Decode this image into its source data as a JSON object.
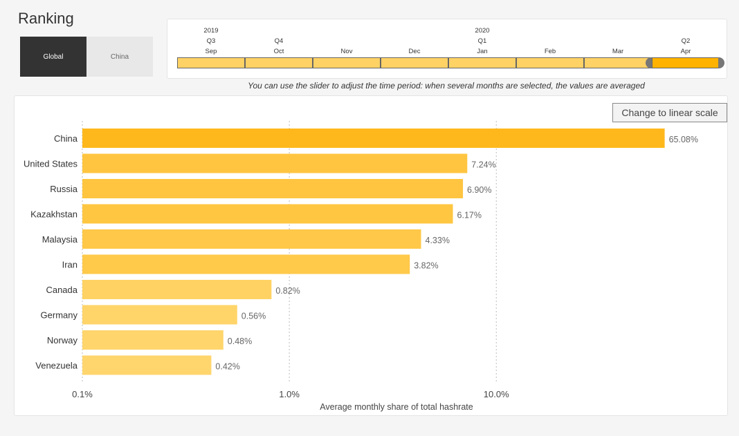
{
  "page": {
    "title": "Ranking"
  },
  "region_toggle": {
    "options": [
      {
        "label": "Global",
        "active": true
      },
      {
        "label": "China",
        "active": false
      }
    ]
  },
  "timeline": {
    "years": [
      {
        "label": "2019",
        "month_index": 0
      },
      {
        "label": "2020",
        "month_index": 4
      }
    ],
    "quarters": [
      {
        "label": "Q3",
        "month_index": 0
      },
      {
        "label": "Q4",
        "month_index": 1
      },
      {
        "label": "Q1",
        "month_index": 4
      },
      {
        "label": "Q2",
        "month_index": 7
      }
    ],
    "months": [
      "Sep",
      "Oct",
      "Nov",
      "Dec",
      "Jan",
      "Feb",
      "Mar",
      "Apr"
    ],
    "selected_months": [
      "Apr"
    ]
  },
  "caption": "You can use the slider to adjust the time period: when several months are selected, the values are averaged",
  "scale_button": {
    "label": "Change to linear scale"
  },
  "chart_data": {
    "type": "bar",
    "orientation": "horizontal",
    "scale": "log",
    "categories": [
      "China",
      "United States",
      "Russia",
      "Kazakhstan",
      "Malaysia",
      "Iran",
      "Canada",
      "Germany",
      "Norway",
      "Venezuela"
    ],
    "values": [
      65.08,
      7.24,
      6.9,
      6.17,
      4.33,
      3.82,
      0.82,
      0.56,
      0.48,
      0.42
    ],
    "value_labels": [
      "65.08%",
      "7.24%",
      "6.90%",
      "6.17%",
      "4.33%",
      "3.82%",
      "0.82%",
      "0.56%",
      "0.48%",
      "0.42%"
    ],
    "xlabel": "Average monthly share of total hashrate",
    "xticks": [
      0.1,
      1.0,
      10.0
    ],
    "xtick_labels": [
      "0.1%",
      "1.0%",
      "10.0%"
    ],
    "xlim": [
      0.1,
      75
    ],
    "grid": "vertical-dotted",
    "colors": {
      "max": "#ffb81c",
      "min": "#ffd66e"
    }
  }
}
